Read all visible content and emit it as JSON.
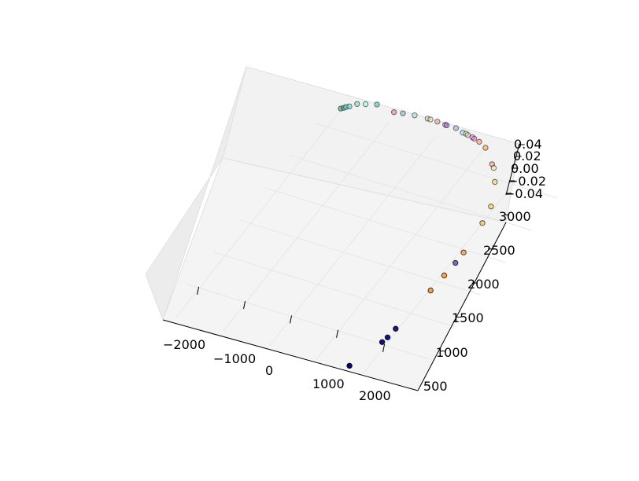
{
  "chart_data": {
    "type": "scatter",
    "projection": "3d",
    "title": "",
    "grid": true,
    "x_axis": {
      "label": "",
      "ticks": [
        "−2000",
        "−1000",
        "0",
        "1000",
        "2000"
      ]
    },
    "y_axis": {
      "label": "",
      "ticks": [
        "500",
        "1000",
        "1500",
        "2000",
        "2500",
        "3000"
      ]
    },
    "z_axis": {
      "label": "",
      "ticks": [
        "−0.04",
        "−0.02",
        "0.00",
        "0.02",
        "0.04"
      ]
    },
    "z_value_all_points": 0.0,
    "points": [
      {
        "x": -2020,
        "y": 3280,
        "color": "#2e8b57"
      },
      {
        "x": -1980,
        "y": 3300,
        "color": "#3cb371"
      },
      {
        "x": -1950,
        "y": 3320,
        "color": "#40e0d0"
      },
      {
        "x": -1900,
        "y": 3340,
        "color": "#48d1cc"
      },
      {
        "x": -1800,
        "y": 3400,
        "color": "#66cdaa"
      },
      {
        "x": -1650,
        "y": 3430,
        "color": "#7fffd4"
      },
      {
        "x": -1450,
        "y": 3470,
        "color": "#20b2aa"
      },
      {
        "x": -1050,
        "y": 3440,
        "color": "#cd5c5c"
      },
      {
        "x": -880,
        "y": 3460,
        "color": "#5f9ea0"
      },
      {
        "x": -650,
        "y": 3480,
        "color": "#87ceeb"
      },
      {
        "x": -380,
        "y": 3490,
        "color": "#b0c4de"
      },
      {
        "x": -320,
        "y": 3490,
        "color": "#f0e68c"
      },
      {
        "x": -170,
        "y": 3490,
        "color": "#f08080"
      },
      {
        "x": 10,
        "y": 3480,
        "color": "#9370db"
      },
      {
        "x": 40,
        "y": 3480,
        "color": "#ba55d3"
      },
      {
        "x": 240,
        "y": 3480,
        "color": "#8a8aff"
      },
      {
        "x": 420,
        "y": 3450,
        "color": "#87cefa"
      },
      {
        "x": 490,
        "y": 3450,
        "color": "#ffff99"
      },
      {
        "x": 540,
        "y": 3440,
        "color": "#d8bfd8"
      },
      {
        "x": 650,
        "y": 3430,
        "color": "#ee82ee"
      },
      {
        "x": 700,
        "y": 3420,
        "color": "#ff69b4"
      },
      {
        "x": 830,
        "y": 3400,
        "color": "#ff7f50"
      },
      {
        "x": 1020,
        "y": 3350,
        "color": "#ff8c00"
      },
      {
        "x": 1360,
        "y": 3170,
        "color": "#fa8072"
      },
      {
        "x": 1440,
        "y": 3130,
        "color": "#f0e68c"
      },
      {
        "x": 1650,
        "y": 2960,
        "color": "#f4d03f"
      },
      {
        "x": 1920,
        "y": 2640,
        "color": "#f5c542"
      },
      {
        "x": 2000,
        "y": 2400,
        "color": "#f0c040"
      },
      {
        "x": 2080,
        "y": 1960,
        "color": "#ff8c1a"
      },
      {
        "x": 2080,
        "y": 1800,
        "color": "#3a3a9a"
      },
      {
        "x": 2060,
        "y": 1600,
        "color": "#ff8c1a"
      },
      {
        "x": 2030,
        "y": 1360,
        "color": "#ff8c1a"
      },
      {
        "x": 1950,
        "y": 750,
        "color": "#00007a"
      },
      {
        "x": 1930,
        "y": 610,
        "color": "#00007a"
      },
      {
        "x": 1900,
        "y": 530,
        "color": "#00007a"
      },
      {
        "x": 1660,
        "y": 110,
        "color": "#00008b"
      }
    ]
  }
}
